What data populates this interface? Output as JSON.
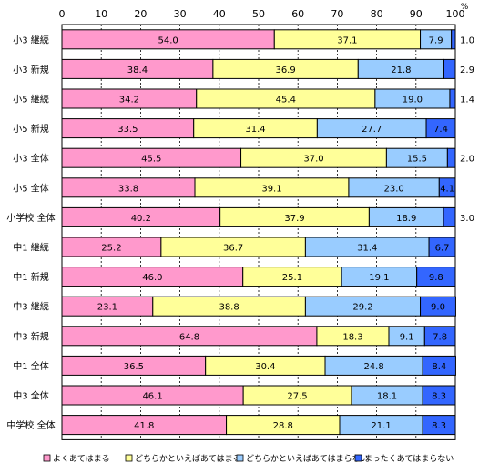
{
  "chart_data": {
    "type": "bar",
    "orientation": "horizontal",
    "stacked": true,
    "unit": "%",
    "xlim": [
      0,
      100
    ],
    "x_ticks": [
      "0",
      "10",
      "20",
      "30",
      "40",
      "50",
      "60",
      "70",
      "80",
      "90",
      "100"
    ],
    "grid": true,
    "legend_position": "bottom",
    "categories": [
      "小3 継続",
      "小3 新規",
      "小5 継続",
      "小5 新規",
      "小3 全体",
      "小5 全体",
      "小学校 全体",
      "中1 継続",
      "中1 新規",
      "中3 継続",
      "中3 新規",
      "中1 全体",
      "中3 全体",
      "中学校 全体"
    ],
    "series": [
      {
        "name": "よくあてはまる",
        "color": "#ff99cc",
        "values": [
          54.0,
          38.4,
          34.2,
          33.5,
          45.5,
          33.8,
          40.2,
          25.2,
          46.0,
          23.1,
          64.8,
          36.5,
          46.1,
          41.8
        ]
      },
      {
        "name": "どちらかといえばあてはまる",
        "color": "#ffff99",
        "values": [
          37.1,
          36.9,
          45.4,
          31.4,
          37.0,
          39.1,
          37.9,
          36.7,
          25.1,
          38.8,
          18.3,
          30.4,
          27.5,
          28.8
        ]
      },
      {
        "name": "どちらかといえばあてはまらない",
        "color": "#99ccff",
        "values": [
          7.9,
          21.8,
          19.0,
          27.7,
          15.5,
          23.0,
          18.9,
          31.4,
          19.1,
          29.2,
          9.1,
          24.8,
          18.1,
          21.1
        ]
      },
      {
        "name": "まったくあてはまらない",
        "color": "#3366ff",
        "values": [
          1.0,
          2.9,
          1.4,
          7.4,
          2.0,
          4.1,
          3.0,
          6.7,
          9.8,
          9.0,
          7.8,
          8.4,
          8.3,
          8.3
        ]
      }
    ],
    "labels": [
      [
        "54.0",
        "37.1",
        "7.9",
        "1.0"
      ],
      [
        "38.4",
        "36.9",
        "21.8",
        "2.9"
      ],
      [
        "34.2",
        "45.4",
        "19.0",
        "1.4"
      ],
      [
        "33.5",
        "31.4",
        "27.7",
        "7.4"
      ],
      [
        "45.5",
        "37.0",
        "15.5",
        "2.0"
      ],
      [
        "33.8",
        "39.1",
        "23.0",
        "4.1"
      ],
      [
        "40.2",
        "37.9",
        "18.9",
        "3.0"
      ],
      [
        "25.2",
        "36.7",
        "31.4",
        "6.7"
      ],
      [
        "46.0",
        "25.1",
        "19.1",
        "9.8"
      ],
      [
        "23.1",
        "38.8",
        "29.2",
        "9.0"
      ],
      [
        "64.8",
        "18.3",
        "9.1",
        "7.8"
      ],
      [
        "36.5",
        "30.4",
        "24.8",
        "8.4"
      ],
      [
        "46.1",
        "27.5",
        "18.1",
        "8.3"
      ],
      [
        "41.8",
        "28.8",
        "21.1",
        "8.3"
      ]
    ],
    "outside_label_series": 3,
    "outside_label_rows": [
      0,
      1,
      2,
      4,
      6
    ]
  }
}
